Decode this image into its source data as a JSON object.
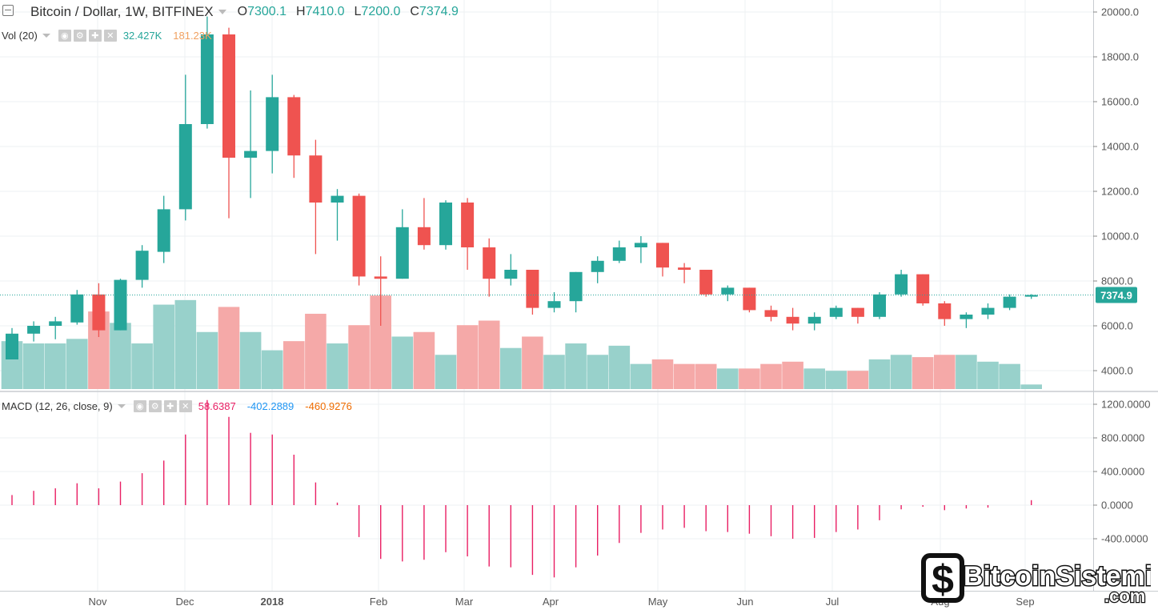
{
  "header": {
    "symbol": "Bitcoin / Dollar, 1W, BITFINEX",
    "ohlc": [
      {
        "key": "O",
        "value": "7300.1"
      },
      {
        "key": "H",
        "value": "7410.0"
      },
      {
        "key": "L",
        "value": "7200.0"
      },
      {
        "key": "C",
        "value": "7374.9"
      }
    ]
  },
  "volume_indicator": {
    "name": "Vol (20)",
    "values": [
      {
        "text": "32.427K",
        "color": "#26a69a"
      },
      {
        "text": "181.23K",
        "color": "#f0a060"
      }
    ]
  },
  "macd_indicator": {
    "name": "MACD (12, 26, close, 9)",
    "values": [
      {
        "text": "58.6387",
        "color": "#e91e63"
      },
      {
        "text": "-402.2889",
        "color": "#2196f3"
      },
      {
        "text": "-460.9276",
        "color": "#ef6c00"
      }
    ]
  },
  "last_price_label": "7374.9",
  "colors": {
    "up": "#26a69a",
    "down": "#ef5350",
    "vol_up": "#98d1cb",
    "vol_down": "#f5a9a8",
    "macd_hist": "#e91e63",
    "grid": "#eef1f3"
  },
  "watermark": {
    "text": "BitcoinSistemi",
    "suffix": ".com"
  },
  "chart_data": [
    {
      "type": "candlestick",
      "pane": "price",
      "x_tick_labels": [
        "Nov",
        "Dec",
        "2018",
        "Feb",
        "Mar",
        "Apr",
        "May",
        "Jun",
        "Jul",
        "Aug",
        "Sep"
      ],
      "y_tick_labels": [
        "4000.0",
        "6000.0",
        "8000.0",
        "10000.0",
        "12000.0",
        "14000.0",
        "16000.0",
        "18000.0",
        "20000.0"
      ],
      "ylim": [
        3200,
        20500
      ],
      "candles": [
        {
          "o": 4500,
          "h": 5900,
          "l": 4500,
          "c": 5650
        },
        {
          "o": 5650,
          "h": 6200,
          "l": 5300,
          "c": 6000
        },
        {
          "o": 6000,
          "h": 6400,
          "l": 5400,
          "c": 6200
        },
        {
          "o": 6150,
          "h": 7600,
          "l": 6050,
          "c": 7400
        },
        {
          "o": 7400,
          "h": 7900,
          "l": 5500,
          "c": 5800
        },
        {
          "o": 5800,
          "h": 8100,
          "l": 5800,
          "c": 8050
        },
        {
          "o": 8050,
          "h": 9600,
          "l": 7700,
          "c": 9350
        },
        {
          "o": 9300,
          "h": 11800,
          "l": 8800,
          "c": 11200
        },
        {
          "o": 11200,
          "h": 17200,
          "l": 10700,
          "c": 15000
        },
        {
          "o": 15000,
          "h": 19800,
          "l": 14800,
          "c": 19000
        },
        {
          "o": 19000,
          "h": 19300,
          "l": 10800,
          "c": 13500
        },
        {
          "o": 13500,
          "h": 16500,
          "l": 11700,
          "c": 13800
        },
        {
          "o": 13800,
          "h": 17200,
          "l": 12800,
          "c": 16200
        },
        {
          "o": 16200,
          "h": 16300,
          "l": 12600,
          "c": 13600
        },
        {
          "o": 13600,
          "h": 14300,
          "l": 9200,
          "c": 11500
        },
        {
          "o": 11500,
          "h": 12100,
          "l": 9800,
          "c": 11800
        },
        {
          "o": 11800,
          "h": 11900,
          "l": 7800,
          "c": 8200
        },
        {
          "o": 8200,
          "h": 9100,
          "l": 6000,
          "c": 8100
        },
        {
          "o": 8100,
          "h": 11200,
          "l": 8100,
          "c": 10400
        },
        {
          "o": 10400,
          "h": 11700,
          "l": 9400,
          "c": 9600
        },
        {
          "o": 9600,
          "h": 11600,
          "l": 9400,
          "c": 11500
        },
        {
          "o": 11500,
          "h": 11700,
          "l": 8500,
          "c": 9500
        },
        {
          "o": 9500,
          "h": 9900,
          "l": 7300,
          "c": 8100
        },
        {
          "o": 8100,
          "h": 9200,
          "l": 7800,
          "c": 8500
        },
        {
          "o": 8500,
          "h": 8500,
          "l": 6500,
          "c": 6800
        },
        {
          "o": 6800,
          "h": 7500,
          "l": 6600,
          "c": 7100
        },
        {
          "o": 7100,
          "h": 8400,
          "l": 6600,
          "c": 8400
        },
        {
          "o": 8400,
          "h": 9100,
          "l": 7900,
          "c": 8900
        },
        {
          "o": 8900,
          "h": 9800,
          "l": 8800,
          "c": 9500
        },
        {
          "o": 9500,
          "h": 10000,
          "l": 8800,
          "c": 9700
        },
        {
          "o": 9700,
          "h": 9700,
          "l": 8200,
          "c": 8600
        },
        {
          "o": 8600,
          "h": 8800,
          "l": 7900,
          "c": 8500
        },
        {
          "o": 8500,
          "h": 8500,
          "l": 7300,
          "c": 7400
        },
        {
          "o": 7400,
          "h": 7800,
          "l": 7100,
          "c": 7700
        },
        {
          "o": 7700,
          "h": 7700,
          "l": 6600,
          "c": 6700
        },
        {
          "o": 6700,
          "h": 6900,
          "l": 6200,
          "c": 6400
        },
        {
          "o": 6400,
          "h": 6800,
          "l": 5800,
          "c": 6100
        },
        {
          "o": 6100,
          "h": 6600,
          "l": 5800,
          "c": 6400
        },
        {
          "o": 6400,
          "h": 6900,
          "l": 6300,
          "c": 6800
        },
        {
          "o": 6800,
          "h": 6800,
          "l": 6100,
          "c": 6400
        },
        {
          "o": 6400,
          "h": 7500,
          "l": 6300,
          "c": 7400
        },
        {
          "o": 7400,
          "h": 8500,
          "l": 7300,
          "c": 8300
        },
        {
          "o": 8300,
          "h": 8300,
          "l": 6900,
          "c": 7000
        },
        {
          "o": 7000,
          "h": 7100,
          "l": 6000,
          "c": 6300
        },
        {
          "o": 6300,
          "h": 6600,
          "l": 5900,
          "c": 6500
        },
        {
          "o": 6500,
          "h": 7000,
          "l": 6300,
          "c": 6800
        },
        {
          "o": 6800,
          "h": 7400,
          "l": 6700,
          "c": 7300
        },
        {
          "o": 7300,
          "h": 7410,
          "l": 7200,
          "c": 7375
        }
      ],
      "volume": [
        5300,
        5200,
        5200,
        5400,
        6600,
        6100,
        5200,
        6900,
        7100,
        5700,
        6800,
        5700,
        4900,
        5300,
        6500,
        5200,
        6000,
        7300,
        5500,
        5700,
        4700,
        6000,
        6200,
        5000,
        5500,
        4700,
        5200,
        4700,
        5100,
        4300,
        4500,
        4300,
        4300,
        4100,
        4100,
        4300,
        4400,
        4100,
        4000,
        4000,
        4500,
        4700,
        4600,
        4700,
        4700,
        4400,
        4300,
        3400
      ],
      "last_price": 7374.9
    },
    {
      "type": "bar",
      "pane": "MACD histogram",
      "y_tick_labels": [
        "-400.0000",
        "0.0000",
        "400.0000",
        "800.0000",
        "1200.0000"
      ],
      "ylim": [
        -820,
        1260
      ],
      "values": [
        120,
        170,
        200,
        260,
        200,
        280,
        380,
        530,
        840,
        1250,
        1050,
        860,
        840,
        600,
        270,
        30,
        -380,
        -640,
        -670,
        -650,
        -560,
        -610,
        -730,
        -740,
        -830,
        -860,
        -740,
        -600,
        -450,
        -330,
        -290,
        -270,
        -310,
        -320,
        -340,
        -370,
        -400,
        -390,
        -320,
        -290,
        -180,
        -50,
        -20,
        -60,
        -40,
        -30,
        0,
        59
      ]
    }
  ]
}
